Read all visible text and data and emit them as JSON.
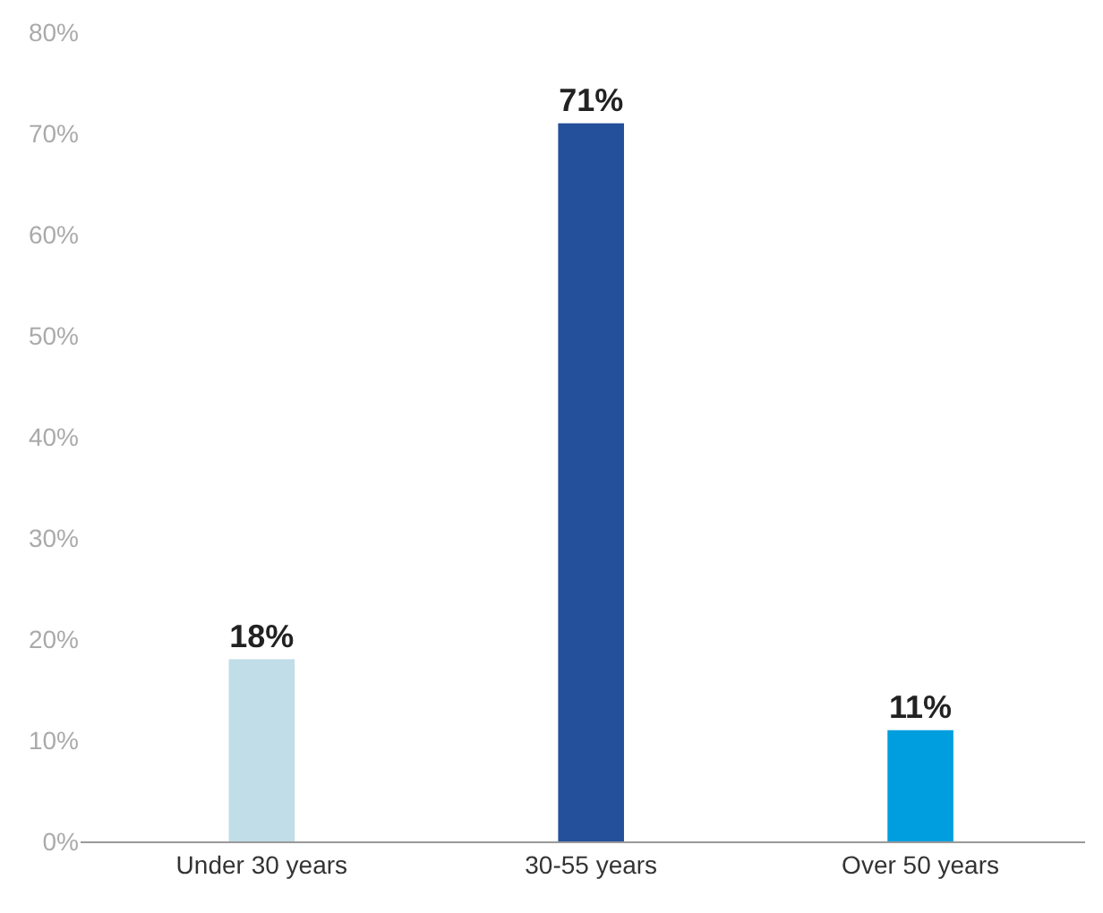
{
  "chart_data": {
    "type": "bar",
    "categories": [
      "Under 30 years",
      "30-55 years",
      "Over 50 years"
    ],
    "values": [
      18,
      71,
      11
    ],
    "colors": [
      "#c0dde8",
      "#244f9a",
      "#009ede"
    ],
    "value_labels": [
      "18%",
      "71%",
      "11%"
    ],
    "ylim": [
      0,
      80
    ],
    "yticks": [
      {
        "value": 0,
        "label": "0%"
      },
      {
        "value": 10,
        "label": "10%"
      },
      {
        "value": 20,
        "label": "20%"
      },
      {
        "value": 30,
        "label": "30%"
      },
      {
        "value": 40,
        "label": "40%"
      },
      {
        "value": 50,
        "label": "50%"
      },
      {
        "value": 60,
        "label": "60%"
      },
      {
        "value": 70,
        "label": "70%"
      },
      {
        "value": 80,
        "label": "80%"
      }
    ],
    "grid": false
  }
}
